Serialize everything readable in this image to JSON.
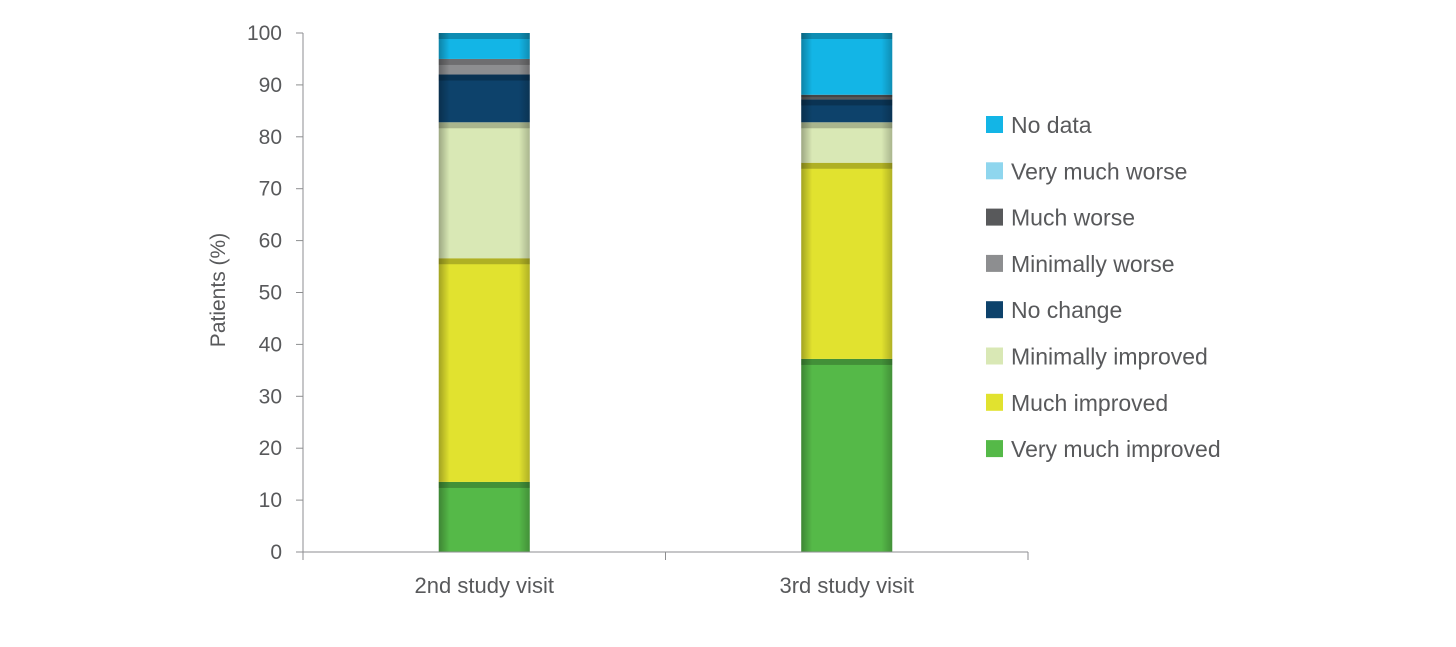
{
  "chart_data": {
    "type": "bar",
    "stacked": true,
    "title": "",
    "xlabel": "",
    "ylabel": "Patients (%)",
    "ylim": [
      0,
      100
    ],
    "yticks": [
      0,
      10,
      20,
      30,
      40,
      50,
      60,
      70,
      80,
      90,
      100
    ],
    "categories": [
      "2nd study visit",
      "3rd study visit"
    ],
    "legend_position": "right",
    "grid": false,
    "series": [
      {
        "name": "Very much improved",
        "color": "#55b948",
        "values": [
          13.5,
          37.2
        ]
      },
      {
        "name": "Much improved",
        "color": "#e1e22f",
        "values": [
          43.1,
          37.8
        ]
      },
      {
        "name": "Minimally improved",
        "color": "#d9e8b5",
        "values": [
          26.2,
          7.8
        ]
      },
      {
        "name": "No change",
        "color": "#0d426b",
        "values": [
          9.2,
          4.4
        ]
      },
      {
        "name": "Minimally worse",
        "color": "#8d8e90",
        "values": [
          3.0,
          0.0
        ]
      },
      {
        "name": "Much worse",
        "color": "#58595b",
        "values": [
          0.0,
          0.9
        ]
      },
      {
        "name": "Very much worse",
        "color": "#8fd6ee",
        "values": [
          0.0,
          0.0
        ]
      },
      {
        "name": "No data",
        "color": "#13b5e6",
        "values": [
          5.0,
          11.9
        ]
      }
    ],
    "legend_order": [
      "No data",
      "Very much worse",
      "Much worse",
      "Minimally worse",
      "No change",
      "Minimally improved",
      "Much improved",
      "Very much improved"
    ]
  }
}
